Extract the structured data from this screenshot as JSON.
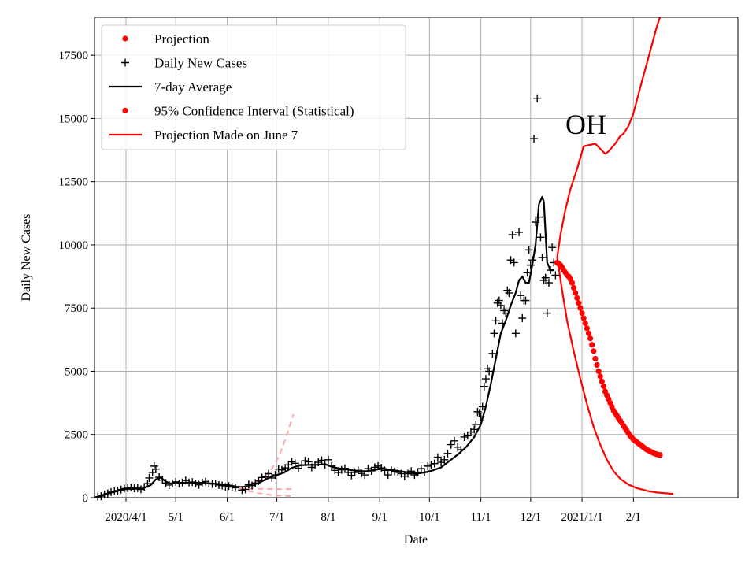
{
  "chart_data": {
    "type": "line",
    "xlabel": "Date",
    "ylabel": "Daily New Cases",
    "annotation": "OH",
    "xlim": [
      -19,
      369
    ],
    "ylim": [
      0,
      19000
    ],
    "xticks": [
      {
        "label": "2020/4/1",
        "x": 0
      },
      {
        "label": "5/1",
        "x": 30
      },
      {
        "label": "6/1",
        "x": 61
      },
      {
        "label": "7/1",
        "x": 91
      },
      {
        "label": "8/1",
        "x": 122
      },
      {
        "label": "9/1",
        "x": 153
      },
      {
        "label": "10/1",
        "x": 183
      },
      {
        "label": "11/1",
        "x": 214
      },
      {
        "label": "12/1",
        "x": 244
      },
      {
        "label": "2021/1/1",
        "x": 275
      },
      {
        "label": "2/1",
        "x": 306
      }
    ],
    "yticks": [
      0,
      2500,
      5000,
      7500,
      10000,
      12500,
      15000,
      17500
    ],
    "legend": [
      {
        "label": "Projection",
        "kind": "dot",
        "color": "#ff0000"
      },
      {
        "label": "Daily New Cases",
        "kind": "plus",
        "color": "#000000"
      },
      {
        "label": "7-day Average",
        "kind": "line",
        "color": "#000000"
      },
      {
        "label": "95% Confidence Interval (Statistical)",
        "kind": "dot",
        "color": "#ff0000"
      },
      {
        "label": "Projection Made on June 7",
        "kind": "line",
        "color": "#ff0000"
      }
    ],
    "series": [
      {
        "name": "7-day Average",
        "style": "line",
        "color": "#000000",
        "points": [
          [
            -17,
            60
          ],
          [
            -10,
            180
          ],
          [
            -5,
            270
          ],
          [
            0,
            340
          ],
          [
            10,
            360
          ],
          [
            15,
            500
          ],
          [
            18,
            730
          ],
          [
            21,
            800
          ],
          [
            24,
            640
          ],
          [
            27,
            560
          ],
          [
            30,
            580
          ],
          [
            40,
            600
          ],
          [
            50,
            570
          ],
          [
            60,
            520
          ],
          [
            67,
            430
          ],
          [
            70,
            420
          ],
          [
            75,
            480
          ],
          [
            80,
            580
          ],
          [
            85,
            750
          ],
          [
            90,
            880
          ],
          [
            95,
            980
          ],
          [
            100,
            1180
          ],
          [
            105,
            1280
          ],
          [
            110,
            1300
          ],
          [
            115,
            1300
          ],
          [
            120,
            1330
          ],
          [
            125,
            1200
          ],
          [
            130,
            1150
          ],
          [
            135,
            1100
          ],
          [
            140,
            1050
          ],
          [
            145,
            1050
          ],
          [
            150,
            1100
          ],
          [
            155,
            1150
          ],
          [
            160,
            1100
          ],
          [
            165,
            1050
          ],
          [
            170,
            1000
          ],
          [
            175,
            950
          ],
          [
            180,
            1000
          ],
          [
            185,
            1080
          ],
          [
            190,
            1200
          ],
          [
            195,
            1450
          ],
          [
            200,
            1700
          ],
          [
            205,
            2000
          ],
          [
            210,
            2400
          ],
          [
            214,
            2900
          ],
          [
            217,
            3600
          ],
          [
            220,
            4500
          ],
          [
            223,
            5500
          ],
          [
            226,
            6500
          ],
          [
            229,
            7000
          ],
          [
            232,
            7600
          ],
          [
            235,
            8100
          ],
          [
            237,
            8600
          ],
          [
            239,
            8750
          ],
          [
            241,
            8500
          ],
          [
            243,
            8500
          ],
          [
            245,
            9200
          ],
          [
            247,
            10000
          ],
          [
            249,
            11600
          ],
          [
            251,
            11900
          ],
          [
            252,
            11700
          ],
          [
            254,
            9300
          ],
          [
            256,
            9000
          ],
          [
            258,
            9000
          ]
        ]
      },
      {
        "name": "Projection Made on June 7",
        "style": "line",
        "color": "#ff0000",
        "points": [
          [
            260,
            9500
          ],
          [
            262,
            10400
          ],
          [
            265,
            11400
          ],
          [
            268,
            12200
          ],
          [
            272,
            13000
          ],
          [
            276,
            13900
          ],
          [
            283,
            14000
          ],
          [
            286,
            13800
          ],
          [
            289,
            13600
          ],
          [
            291,
            13700
          ],
          [
            295,
            14000
          ],
          [
            298,
            14300
          ],
          [
            300,
            14400
          ],
          [
            303,
            14700
          ],
          [
            306,
            15200
          ],
          [
            310,
            16200
          ],
          [
            315,
            17400
          ],
          [
            320,
            18600
          ],
          [
            322,
            19000
          ]
        ]
      },
      {
        "name": "Projection Lower Curve",
        "style": "line",
        "color": "#ff0000",
        "points": [
          [
            260,
            9500
          ],
          [
            263,
            8200
          ],
          [
            266,
            7000
          ],
          [
            270,
            5800
          ],
          [
            274,
            4700
          ],
          [
            278,
            3700
          ],
          [
            282,
            2800
          ],
          [
            286,
            2100
          ],
          [
            290,
            1500
          ],
          [
            294,
            1050
          ],
          [
            298,
            750
          ],
          [
            303,
            520
          ],
          [
            308,
            380
          ],
          [
            315,
            260
          ],
          [
            320,
            210
          ],
          [
            326,
            170
          ],
          [
            330,
            150
          ]
        ]
      },
      {
        "name": "June Projection Upper Band",
        "style": "dashed",
        "color": "#ffaaaa",
        "points": [
          [
            68,
            380
          ],
          [
            72,
            420
          ],
          [
            76,
            520
          ],
          [
            80,
            650
          ],
          [
            84,
            850
          ],
          [
            88,
            1150
          ],
          [
            92,
            1600
          ],
          [
            95,
            2100
          ],
          [
            98,
            2700
          ],
          [
            101,
            3300
          ]
        ]
      },
      {
        "name": "June Projection Mid Band",
        "style": "dashed",
        "color": "#ffaaaa",
        "points": [
          [
            68,
            380
          ],
          [
            74,
            360
          ],
          [
            80,
            350
          ],
          [
            86,
            345
          ],
          [
            92,
            340
          ],
          [
            101,
            340
          ]
        ]
      },
      {
        "name": "June Projection Lower Band",
        "style": "dashed",
        "color": "#ffaaaa",
        "points": [
          [
            68,
            380
          ],
          [
            74,
            260
          ],
          [
            80,
            180
          ],
          [
            86,
            120
          ],
          [
            92,
            80
          ],
          [
            101,
            60
          ]
        ]
      }
    ],
    "daily_new_cases": [
      [
        -17,
        40
      ],
      [
        -15,
        60
      ],
      [
        -13,
        120
      ],
      [
        -11,
        170
      ],
      [
        -9,
        220
      ],
      [
        -7,
        250
      ],
      [
        -5,
        280
      ],
      [
        -3,
        320
      ],
      [
        -1,
        360
      ],
      [
        1,
        380
      ],
      [
        3,
        400
      ],
      [
        5,
        370
      ],
      [
        7,
        380
      ],
      [
        9,
        330
      ],
      [
        11,
        420
      ],
      [
        13,
        560
      ],
      [
        14,
        780
      ],
      [
        16,
        1000
      ],
      [
        17,
        1250
      ],
      [
        18,
        1130
      ],
      [
        20,
        810
      ],
      [
        22,
        700
      ],
      [
        24,
        580
      ],
      [
        26,
        500
      ],
      [
        28,
        560
      ],
      [
        30,
        630
      ],
      [
        32,
        560
      ],
      [
        34,
        600
      ],
      [
        36,
        680
      ],
      [
        38,
        600
      ],
      [
        40,
        620
      ],
      [
        42,
        560
      ],
      [
        44,
        510
      ],
      [
        46,
        600
      ],
      [
        48,
        640
      ],
      [
        50,
        560
      ],
      [
        52,
        540
      ],
      [
        54,
        560
      ],
      [
        56,
        500
      ],
      [
        58,
        480
      ],
      [
        60,
        430
      ],
      [
        62,
        460
      ],
      [
        64,
        420
      ],
      [
        66,
        390
      ],
      [
        70,
        300
      ],
      [
        72,
        330
      ],
      [
        74,
        520
      ],
      [
        76,
        480
      ],
      [
        78,
        580
      ],
      [
        80,
        660
      ],
      [
        82,
        800
      ],
      [
        84,
        820
      ],
      [
        86,
        950
      ],
      [
        88,
        780
      ],
      [
        90,
        900
      ],
      [
        92,
        1130
      ],
      [
        94,
        1100
      ],
      [
        96,
        1180
      ],
      [
        98,
        1300
      ],
      [
        100,
        1420
      ],
      [
        102,
        1360
      ],
      [
        104,
        1160
      ],
      [
        106,
        1300
      ],
      [
        108,
        1460
      ],
      [
        110,
        1420
      ],
      [
        112,
        1200
      ],
      [
        114,
        1300
      ],
      [
        116,
        1400
      ],
      [
        118,
        1480
      ],
      [
        120,
        1300
      ],
      [
        122,
        1500
      ],
      [
        124,
        1250
      ],
      [
        126,
        1080
      ],
      [
        128,
        1000
      ],
      [
        130,
        1100
      ],
      [
        132,
        1160
      ],
      [
        134,
        1000
      ],
      [
        136,
        880
      ],
      [
        138,
        1000
      ],
      [
        140,
        1080
      ],
      [
        142,
        960
      ],
      [
        144,
        900
      ],
      [
        146,
        1150
      ],
      [
        148,
        1060
      ],
      [
        150,
        1200
      ],
      [
        152,
        1250
      ],
      [
        154,
        1180
      ],
      [
        156,
        1080
      ],
      [
        158,
        900
      ],
      [
        160,
        1080
      ],
      [
        162,
        1040
      ],
      [
        164,
        1000
      ],
      [
        166,
        950
      ],
      [
        168,
        850
      ],
      [
        170,
        950
      ],
      [
        172,
        1050
      ],
      [
        174,
        900
      ],
      [
        176,
        1000
      ],
      [
        178,
        1150
      ],
      [
        180,
        1000
      ],
      [
        182,
        1250
      ],
      [
        184,
        1300
      ],
      [
        186,
        1350
      ],
      [
        188,
        1600
      ],
      [
        190,
        1400
      ],
      [
        192,
        1500
      ],
      [
        194,
        1750
      ],
      [
        196,
        2100
      ],
      [
        198,
        2250
      ],
      [
        200,
        2000
      ],
      [
        202,
        1900
      ],
      [
        204,
        2400
      ],
      [
        206,
        2450
      ],
      [
        208,
        2600
      ],
      [
        210,
        2700
      ],
      [
        211,
        2900
      ],
      [
        212,
        3400
      ],
      [
        213,
        3350
      ],
      [
        214,
        3200
      ],
      [
        215,
        3600
      ],
      [
        216,
        4400
      ],
      [
        217,
        4700
      ],
      [
        218,
        5100
      ],
      [
        219,
        5000
      ],
      [
        221,
        5700
      ],
      [
        222,
        6500
      ],
      [
        223,
        7000
      ],
      [
        224,
        7700
      ],
      [
        225,
        7800
      ],
      [
        226,
        7600
      ],
      [
        227,
        6900
      ],
      [
        228,
        7400
      ],
      [
        229,
        7300
      ],
      [
        230,
        8200
      ],
      [
        231,
        8100
      ],
      [
        232,
        9400
      ],
      [
        233,
        10400
      ],
      [
        234,
        9300
      ],
      [
        235,
        6500
      ],
      [
        237,
        10500
      ],
      [
        238,
        8000
      ],
      [
        239,
        7100
      ],
      [
        240,
        7800
      ],
      [
        241,
        7800
      ],
      [
        242,
        8900
      ],
      [
        243,
        9800
      ],
      [
        244,
        9200
      ],
      [
        245,
        9400
      ],
      [
        246,
        14200
      ],
      [
        247,
        10900
      ],
      [
        248,
        15800
      ],
      [
        249,
        11100
      ],
      [
        250,
        10300
      ],
      [
        251,
        9500
      ],
      [
        252,
        8600
      ],
      [
        253,
        8700
      ],
      [
        254,
        7300
      ],
      [
        255,
        8500
      ],
      [
        256,
        9000
      ],
      [
        257,
        9900
      ],
      [
        258,
        9300
      ],
      [
        259,
        8800
      ]
    ],
    "projection_dots": [
      [
        260,
        9300
      ],
      [
        261,
        9250
      ],
      [
        262,
        9200
      ],
      [
        263,
        9100
      ],
      [
        264,
        9000
      ],
      [
        265,
        8900
      ],
      [
        266,
        8800
      ],
      [
        267,
        8750
      ],
      [
        268,
        8650
      ],
      [
        269,
        8500
      ],
      [
        270,
        8300
      ],
      [
        271,
        8100
      ],
      [
        272,
        7900
      ],
      [
        273,
        7700
      ],
      [
        274,
        7500
      ],
      [
        275,
        7300
      ],
      [
        276,
        7100
      ],
      [
        277,
        6900
      ],
      [
        278,
        6700
      ],
      [
        279,
        6500
      ],
      [
        280,
        6300
      ],
      [
        281,
        6050
      ],
      [
        282,
        5800
      ],
      [
        283,
        5500
      ],
      [
        284,
        5250
      ],
      [
        285,
        5000
      ],
      [
        286,
        4800
      ],
      [
        287,
        4600
      ],
      [
        288,
        4400
      ],
      [
        289,
        4200
      ],
      [
        290,
        4050
      ],
      [
        291,
        3900
      ],
      [
        292,
        3750
      ],
      [
        293,
        3600
      ],
      [
        294,
        3450
      ],
      [
        295,
        3350
      ],
      [
        296,
        3250
      ],
      [
        297,
        3150
      ],
      [
        298,
        3050
      ],
      [
        299,
        2950
      ],
      [
        300,
        2850
      ],
      [
        301,
        2750
      ],
      [
        302,
        2650
      ],
      [
        303,
        2550
      ],
      [
        304,
        2450
      ],
      [
        305,
        2380
      ],
      [
        306,
        2300
      ],
      [
        307,
        2250
      ],
      [
        308,
        2200
      ],
      [
        309,
        2150
      ],
      [
        310,
        2100
      ],
      [
        311,
        2050
      ],
      [
        312,
        2000
      ],
      [
        313,
        1950
      ],
      [
        314,
        1900
      ],
      [
        315,
        1870
      ],
      [
        316,
        1840
      ],
      [
        317,
        1800
      ],
      [
        318,
        1770
      ],
      [
        319,
        1740
      ],
      [
        320,
        1720
      ],
      [
        321,
        1700
      ],
      [
        322,
        1690
      ]
    ]
  }
}
